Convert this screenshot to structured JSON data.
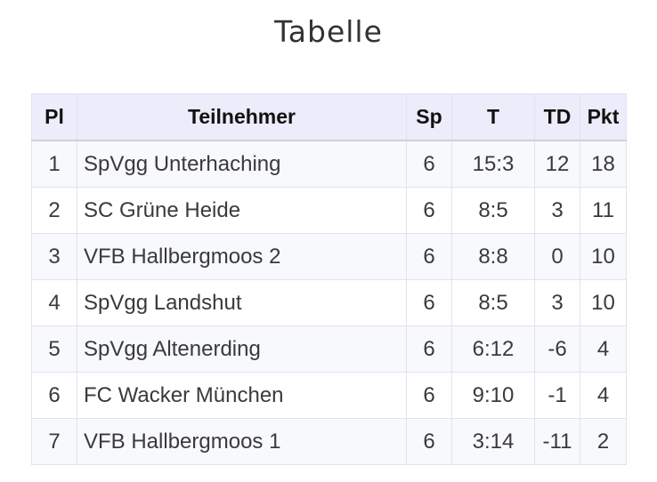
{
  "title": "Tabelle",
  "table": {
    "headers": [
      "Pl",
      "Teilnehmer",
      "Sp",
      "T",
      "TD",
      "Pkt"
    ],
    "rows": [
      {
        "pl": "1",
        "team": "SpVgg Unterhaching",
        "sp": "6",
        "t": "15:3",
        "td": "12",
        "pkt": "18"
      },
      {
        "pl": "2",
        "team": "SC Grüne Heide",
        "sp": "6",
        "t": "8:5",
        "td": "3",
        "pkt": "11"
      },
      {
        "pl": "3",
        "team": "VFB Hallbergmoos 2",
        "sp": "6",
        "t": "8:8",
        "td": "0",
        "pkt": "10"
      },
      {
        "pl": "4",
        "team": "SpVgg Landshut",
        "sp": "6",
        "t": "8:5",
        "td": "3",
        "pkt": "10"
      },
      {
        "pl": "5",
        "team": "SpVgg Altenerding",
        "sp": "6",
        "t": "6:12",
        "td": "-6",
        "pkt": "4"
      },
      {
        "pl": "6",
        "team": "FC Wacker München",
        "sp": "6",
        "t": "9:10",
        "td": "-1",
        "pkt": "4"
      },
      {
        "pl": "7",
        "team": "VFB Hallbergmoos 1",
        "sp": "6",
        "t": "3:14",
        "td": "-11",
        "pkt": "2"
      }
    ]
  }
}
